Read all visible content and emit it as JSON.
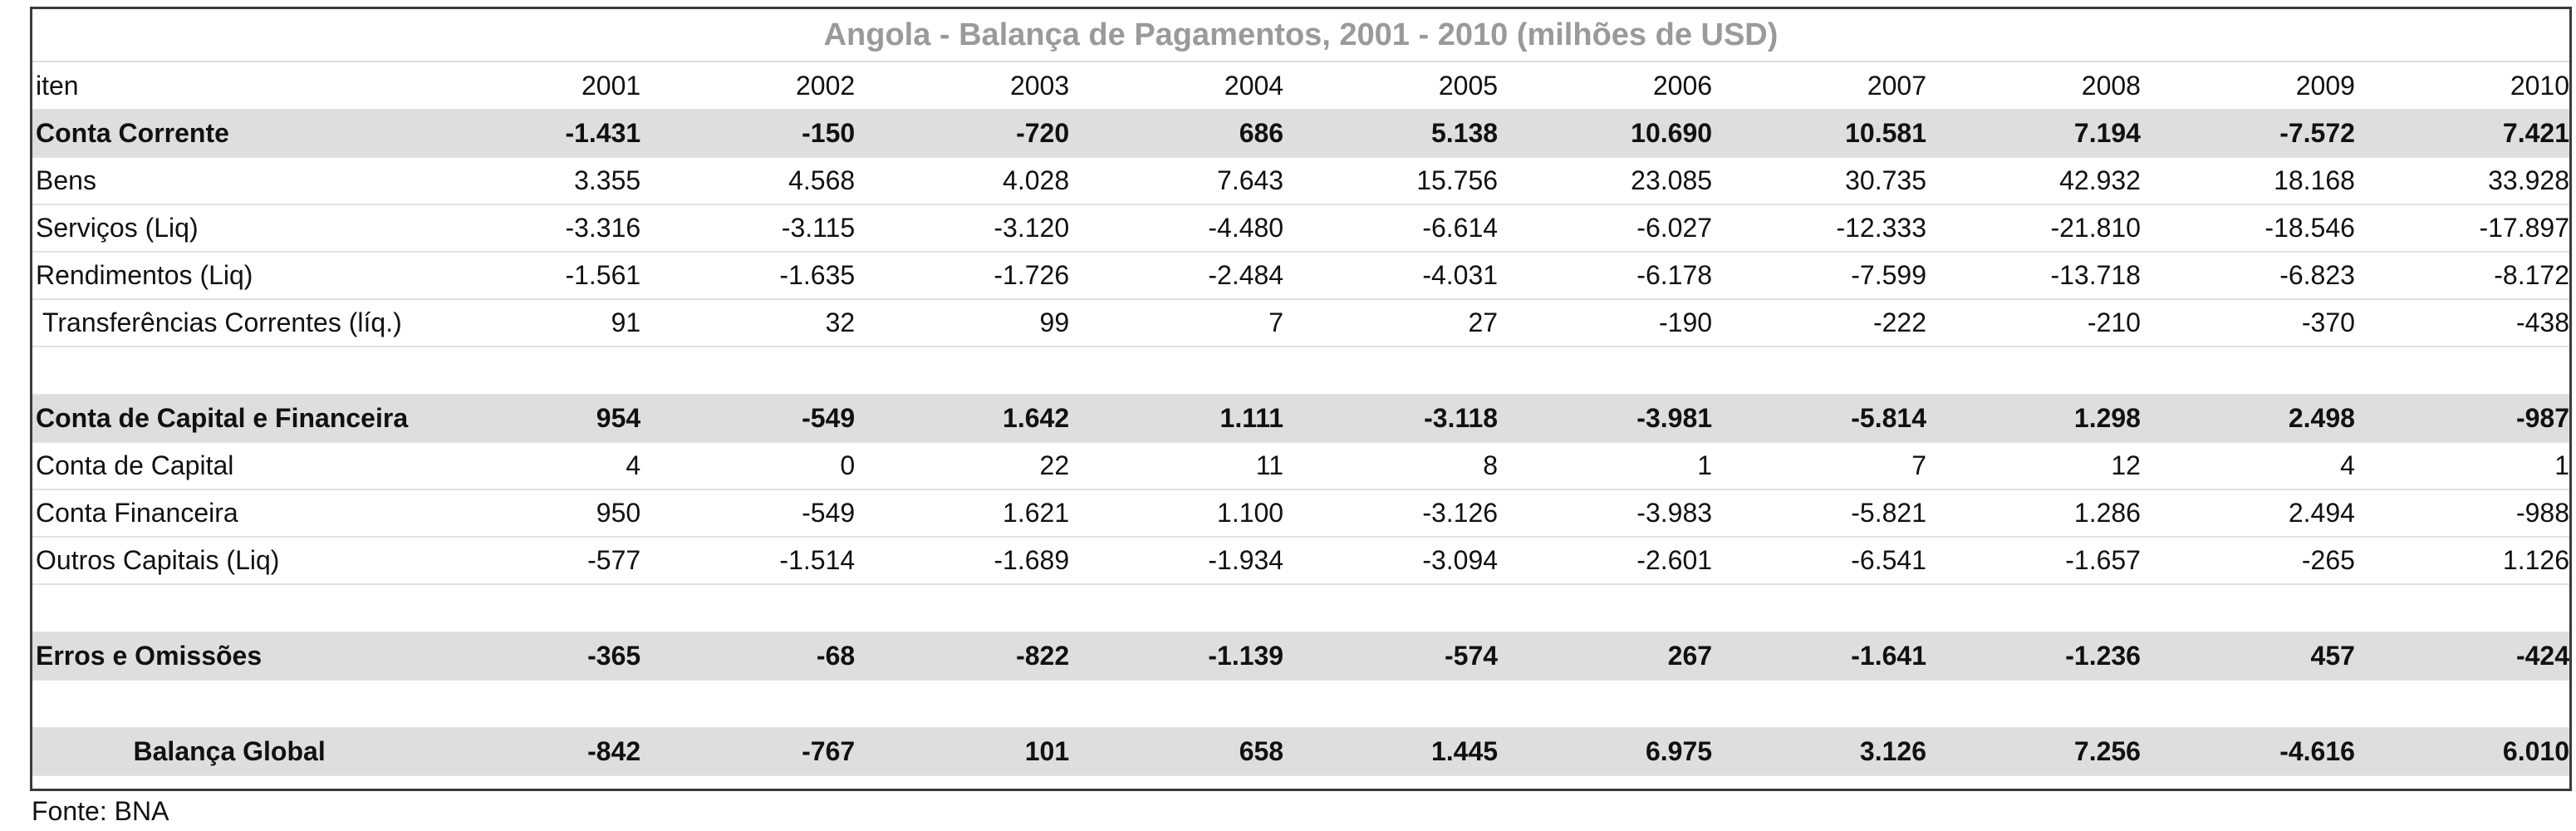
{
  "title": "Angola - Balança de Pagamentos, 2001 - 2010 (milhões de USD)",
  "header": {
    "label": "iten",
    "years": [
      "2001",
      "2002",
      "2003",
      "2004",
      "2005",
      "2006",
      "2007",
      "2008",
      "2009",
      "2010"
    ]
  },
  "rows": [
    {
      "label": "Conta Corrente",
      "values": [
        "-1.431",
        "-150",
        "-720",
        "686",
        "5.138",
        "10.690",
        "10.581",
        "7.194",
        "-7.572",
        "7.421"
      ]
    },
    {
      "label": "Bens",
      "values": [
        "3.355",
        "4.568",
        "4.028",
        "7.643",
        "15.756",
        "23.085",
        "30.735",
        "42.932",
        "18.168",
        "33.928"
      ]
    },
    {
      "label": "Serviços (Liq)",
      "values": [
        "-3.316",
        "-3.115",
        "-3.120",
        "-4.480",
        "-6.614",
        "-6.027",
        "-12.333",
        "-21.810",
        "-18.546",
        "-17.897"
      ]
    },
    {
      "label": "Rendimentos (Liq)",
      "values": [
        "-1.561",
        "-1.635",
        "-1.726",
        "-2.484",
        "-4.031",
        "-6.178",
        "-7.599",
        "-13.718",
        "-6.823",
        "-8.172"
      ]
    },
    {
      "label": "Transferências Correntes (líq.)",
      "values": [
        "91",
        "32",
        "99",
        "7",
        "27",
        "-190",
        "-222",
        "-210",
        "-370",
        "-438"
      ]
    },
    {
      "label": "Conta  de Capital e Financeira",
      "values": [
        "954",
        "-549",
        "1.642",
        "1.111",
        "-3.118",
        "-3.981",
        "-5.814",
        "1.298",
        "2.498",
        "-987"
      ]
    },
    {
      "label": "Conta  de Capital",
      "values": [
        "4",
        "0",
        "22",
        "11",
        "8",
        "1",
        "7",
        "12",
        "4",
        "1"
      ]
    },
    {
      "label": "Conta   Financeira",
      "values": [
        "950",
        "-549",
        "1.621",
        "1.100",
        "-3.126",
        "-3.983",
        "-5.821",
        "1.286",
        "2.494",
        "-988"
      ]
    },
    {
      "label": "Outros Capitais (Liq)",
      "values": [
        "-577",
        "-1.514",
        "-1.689",
        "-1.934",
        "-3.094",
        "-2.601",
        "-6.541",
        "-1.657",
        "-265",
        "1.126"
      ]
    },
    {
      "label": "Erros e Omissões",
      "values": [
        "-365",
        "-68",
        "-822",
        "-1.139",
        "-574",
        "267",
        "-1.641",
        "-1.236",
        "457",
        "-424"
      ]
    },
    {
      "label": "Balança Global",
      "values": [
        "-842",
        "-767",
        "101",
        "658",
        "1.445",
        "6.975",
        "3.126",
        "7.256",
        "-4.616",
        "6.010"
      ]
    }
  ],
  "source": "Fonte: BNA"
}
